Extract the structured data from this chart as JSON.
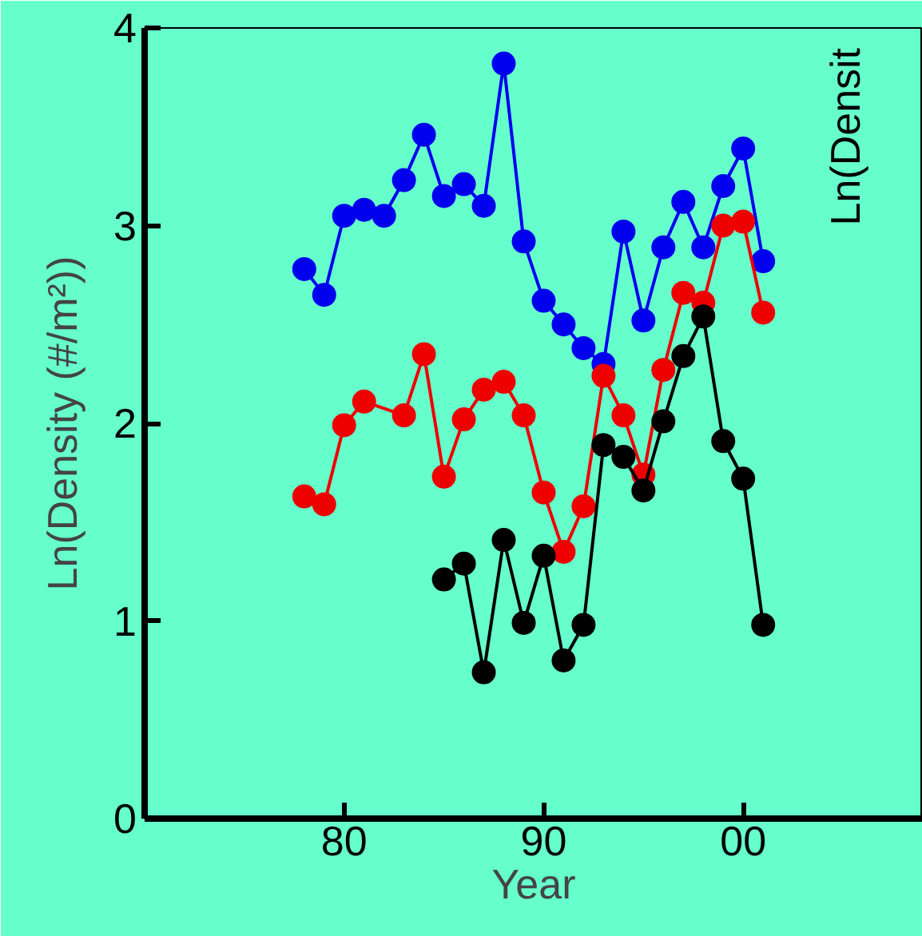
{
  "chart_data": {
    "type": "line",
    "xlabel": "Year",
    "ylabel": "Ln(Density (#/m²))",
    "xlim": [
      "1970",
      "2009"
    ],
    "ylim": [
      0,
      4
    ],
    "xticks": [
      {
        "value": "1980",
        "label": "80"
      },
      {
        "value": "1990",
        "label": "90"
      },
      {
        "value": "2000",
        "label": "00"
      }
    ],
    "yticks": [
      0,
      1,
      2,
      3,
      4
    ],
    "grid": false,
    "marker": "circle",
    "line_style": "solid",
    "annotations": [
      "Ln(Densit"
    ],
    "series": [
      {
        "color": "#0000ee",
        "x": [
          "1978",
          "1979",
          "1980",
          "1981",
          "1982",
          "1983",
          "1984",
          "1985",
          "1986",
          "1987",
          "1988",
          "1989",
          "1990",
          "1991",
          "1992",
          "1993",
          "1994",
          "1995",
          "1996",
          "1997",
          "1998",
          "1999",
          "2000",
          "2001"
        ],
        "values": [
          2.78,
          2.65,
          3.05,
          3.08,
          3.05,
          3.23,
          3.46,
          3.15,
          3.21,
          3.1,
          3.82,
          2.92,
          2.62,
          2.5,
          2.38,
          2.3,
          2.97,
          2.52,
          2.89,
          3.12,
          2.89,
          3.2,
          3.39,
          2.82
        ]
      },
      {
        "color": "#ee0000",
        "x": [
          "1978",
          "1979",
          "1980",
          "1981",
          "1983",
          "1984",
          "1985",
          "1986",
          "1987",
          "1988",
          "1989",
          "1990",
          "1991",
          "1992",
          "1993",
          "1994",
          "1995",
          "1996",
          "1997",
          "1998",
          "1999",
          "2000",
          "2001"
        ],
        "values": [
          1.63,
          1.59,
          1.99,
          2.11,
          2.04,
          2.35,
          1.73,
          2.02,
          2.17,
          2.21,
          2.04,
          1.65,
          1.35,
          1.58,
          2.24,
          2.04,
          1.74,
          2.27,
          2.66,
          2.61,
          3.0,
          3.02,
          2.56
        ]
      },
      {
        "color": "#000000",
        "x": [
          "1985",
          "1986",
          "1987",
          "1988",
          "1989",
          "1990",
          "1991",
          "1992",
          "1993",
          "1994",
          "1995",
          "1996",
          "1997",
          "1998",
          "1999",
          "2000",
          "2001"
        ],
        "values": [
          1.21,
          1.29,
          0.74,
          1.41,
          0.99,
          1.33,
          0.8,
          0.98,
          1.89,
          1.83,
          1.66,
          2.01,
          2.34,
          2.54,
          1.91,
          1.72,
          0.98
        ]
      }
    ]
  }
}
